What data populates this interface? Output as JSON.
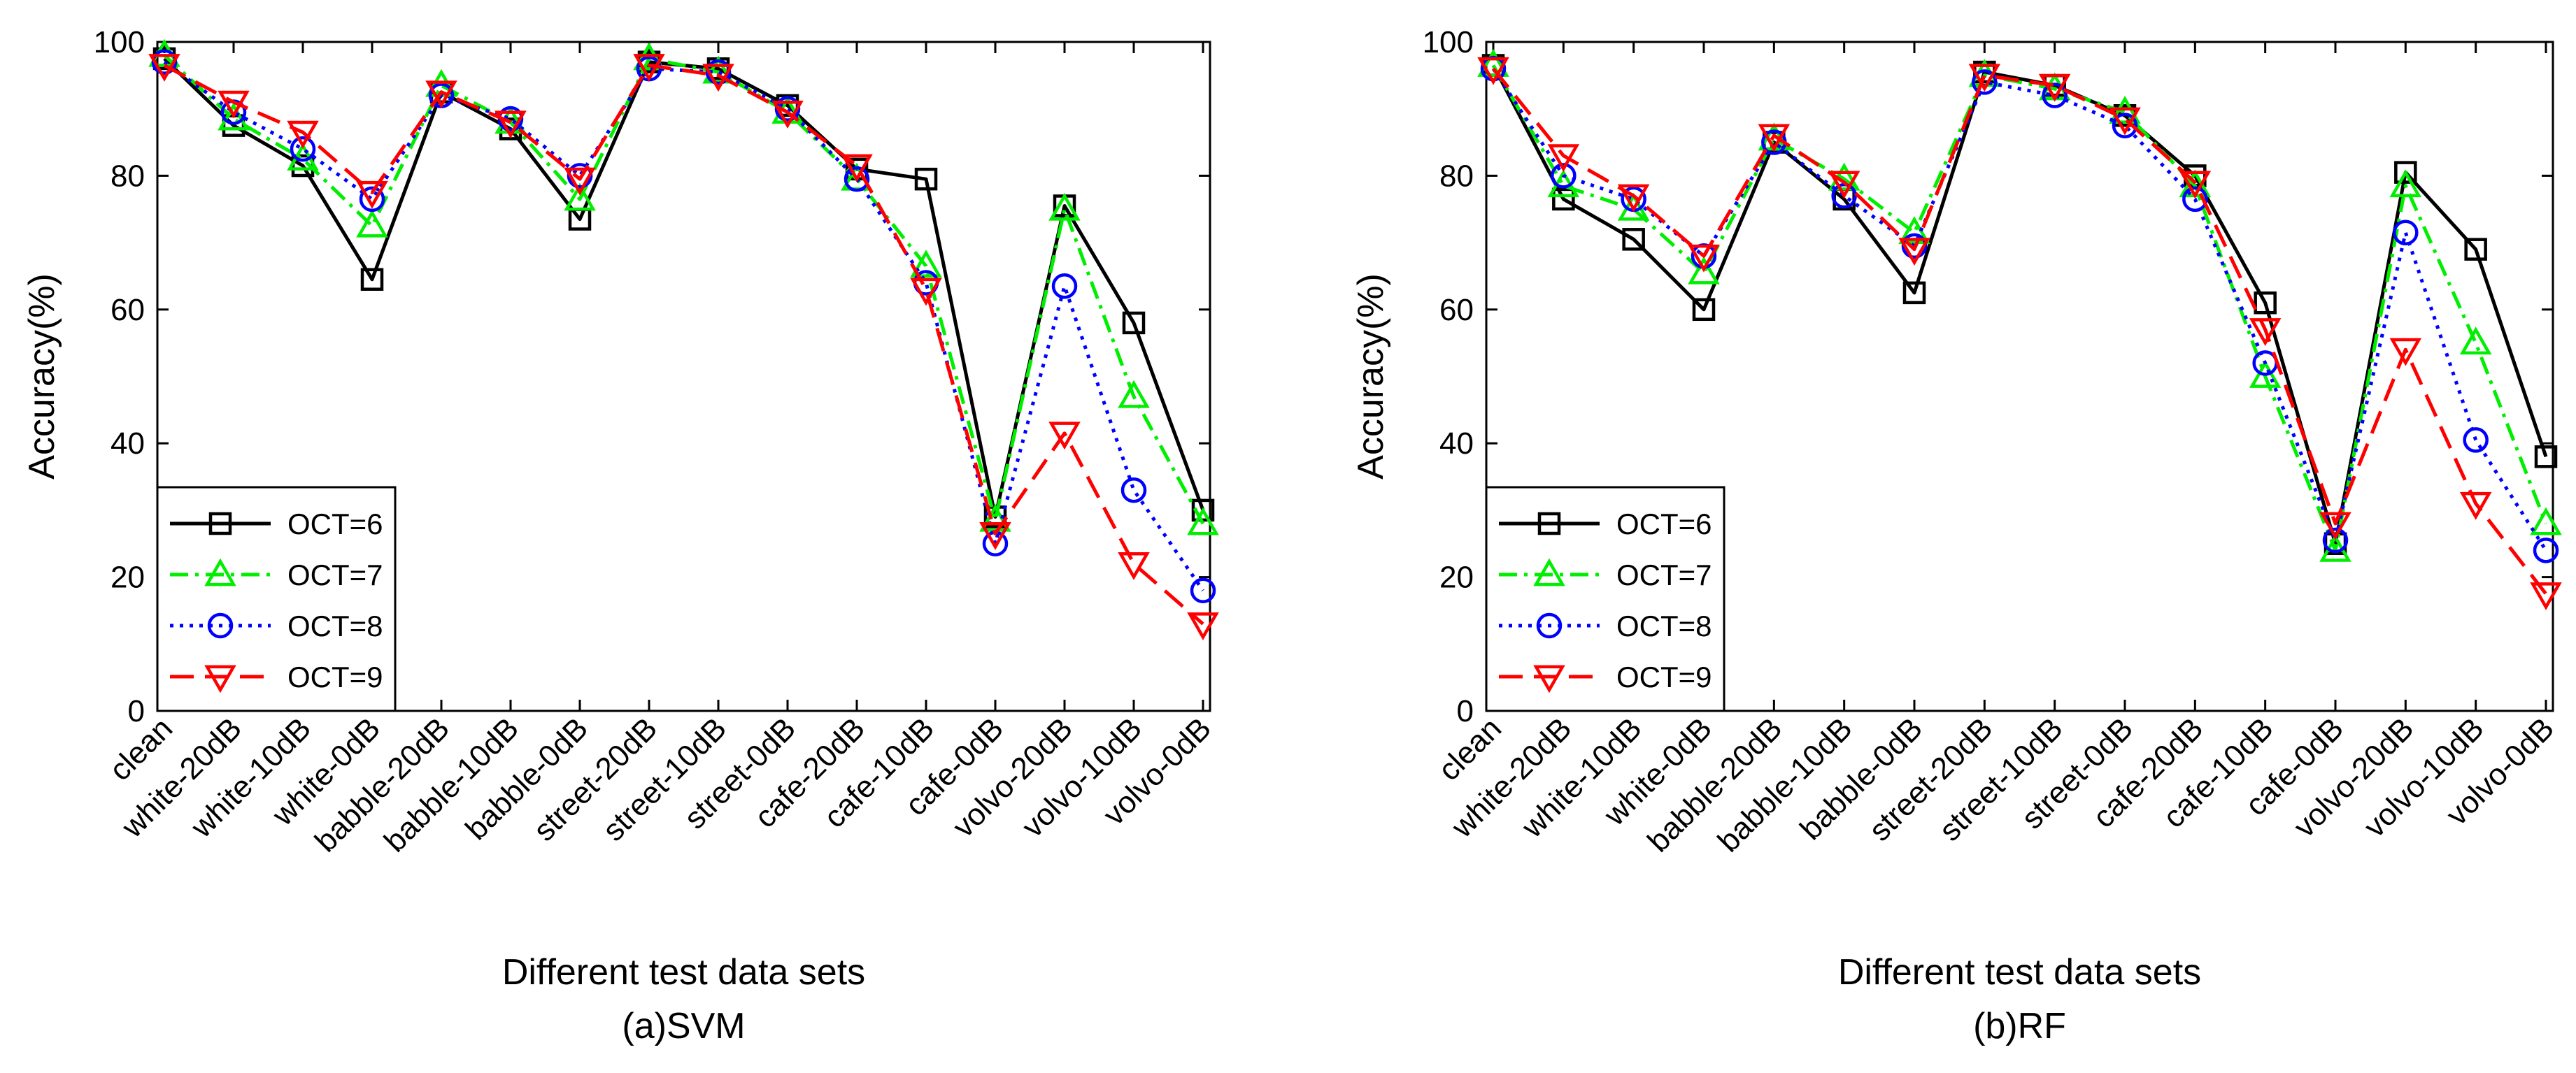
{
  "chart_data": [
    {
      "type": "line",
      "caption": "(a)SVM",
      "xlabel": "Different test data sets",
      "ylabel": "Accuracy(%)",
      "ylim": [
        0,
        100
      ],
      "yticks": [
        0,
        20,
        40,
        60,
        80,
        100
      ],
      "grid": false,
      "legend": "lower-left",
      "categories": [
        "clean",
        "white-20dB",
        "white-10dB",
        "white-0dB",
        "babble-20dB",
        "babble-10dB",
        "babble-0dB",
        "street-20dB",
        "street-10dB",
        "street-0dB",
        "cafe-20dB",
        "cafe-10dB",
        "cafe-0dB",
        "volvo-20dB",
        "volvo-10dB",
        "volvo-0dB"
      ],
      "series": [
        {
          "name": "OCT=6",
          "color": "#000000",
          "marker": "square",
          "dash": "solid",
          "values": [
            97.5,
            87.5,
            81.5,
            64.5,
            92.5,
            87,
            73.5,
            97,
            96,
            90.5,
            81,
            79.5,
            29,
            75.5,
            58,
            30
          ]
        },
        {
          "name": "OCT=7",
          "color": "#00ee00",
          "marker": "triangle-up",
          "dash": "dashdot",
          "values": [
            98,
            88.5,
            82.5,
            72.5,
            93.5,
            88,
            76.5,
            97.5,
            95.5,
            89.5,
            79.5,
            66.5,
            28.5,
            75,
            47,
            28
          ]
        },
        {
          "name": "OCT=8",
          "color": "#0000ff",
          "marker": "circle",
          "dash": "dotted",
          "values": [
            97,
            89.5,
            84,
            76.5,
            92,
            88.5,
            80,
            96,
            95.5,
            90,
            79.5,
            64,
            25,
            63.5,
            33,
            18
          ]
        },
        {
          "name": "OCT=9",
          "color": "#ff0000",
          "marker": "triangle-down",
          "dash": "dashed",
          "values": [
            96.5,
            91,
            86.5,
            77.5,
            92.5,
            88,
            79.5,
            96.5,
            95,
            89.5,
            81.5,
            63,
            26.5,
            41.5,
            22,
            13
          ]
        }
      ]
    },
    {
      "type": "line",
      "caption": "(b)RF",
      "xlabel": "Different test data sets",
      "ylabel": "Accuracy(%)",
      "ylim": [
        0,
        100
      ],
      "yticks": [
        0,
        20,
        40,
        60,
        80,
        100
      ],
      "grid": false,
      "legend": "lower-left",
      "categories": [
        "clean",
        "white-20dB",
        "white-10dB",
        "white-0dB",
        "babble-20dB",
        "babble-10dB",
        "babble-0dB",
        "street-20dB",
        "street-10dB",
        "street-0dB",
        "cafe-20dB",
        "cafe-10dB",
        "cafe-0dB",
        "volvo-20dB",
        "volvo-10dB",
        "volvo-0dB"
      ],
      "series": [
        {
          "name": "OCT=6",
          "color": "#000000",
          "marker": "square",
          "dash": "solid",
          "values": [
            96.5,
            76.5,
            70.5,
            60,
            85,
            76.5,
            62.5,
            95.5,
            93.5,
            89,
            80,
            61,
            25,
            80.5,
            69,
            38
          ]
        },
        {
          "name": "OCT=7",
          "color": "#00ee00",
          "marker": "triangle-up",
          "dash": "dashdot",
          "values": [
            96.5,
            78.5,
            75,
            65.5,
            85.5,
            79.5,
            71.5,
            95,
            93,
            89.5,
            78.5,
            50,
            24,
            78.5,
            55,
            28
          ]
        },
        {
          "name": "OCT=8",
          "color": "#0000ff",
          "marker": "circle",
          "dash": "dotted",
          "values": [
            96,
            80,
            76.5,
            68,
            85,
            77,
            69.5,
            94,
            92,
            87.5,
            76.5,
            52,
            25.5,
            71.5,
            40.5,
            24
          ]
        },
        {
          "name": "OCT=9",
          "color": "#ff0000",
          "marker": "triangle-down",
          "dash": "dashed",
          "values": [
            96,
            83,
            77,
            68,
            86,
            79,
            69,
            95,
            93.5,
            88.5,
            79,
            57,
            28,
            54,
            31,
            17.5
          ]
        }
      ]
    }
  ]
}
